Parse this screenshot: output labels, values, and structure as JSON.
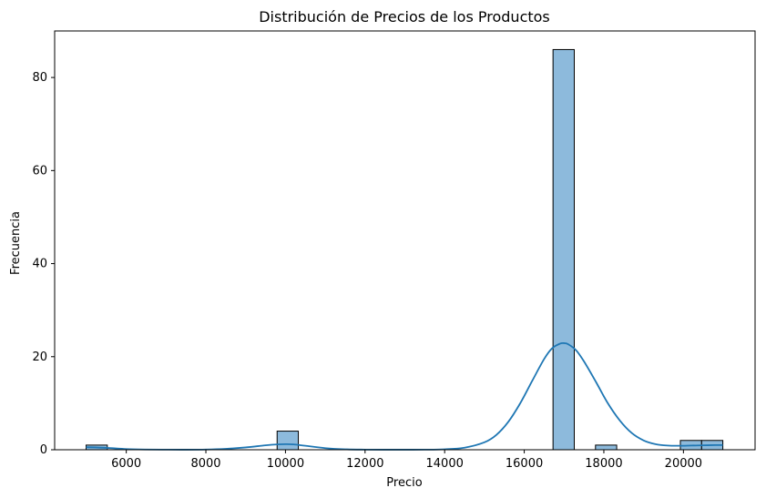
{
  "chart_data": {
    "type": "bar",
    "subtype": "histogram_with_kde",
    "title": "Distribución de Precios de los Productos",
    "xlabel": "Precio",
    "ylabel": "Frecuencia",
    "xlim": [
      4200,
      21800
    ],
    "ylim": [
      0,
      90
    ],
    "xticks": [
      6000,
      8000,
      10000,
      12000,
      14000,
      16000,
      18000,
      20000
    ],
    "yticks": [
      0,
      20,
      40,
      60,
      80
    ],
    "grid": false,
    "bar_color": "#8dbadc",
    "bar_edge_color": "#000000",
    "kde_color": "#1f77b4",
    "bins": [
      {
        "x0": 4990,
        "x1": 5523,
        "count": 1
      },
      {
        "x0": 9790,
        "x1": 10323,
        "count": 4
      },
      {
        "x0": 16723,
        "x1": 17257,
        "count": 86
      },
      {
        "x0": 17790,
        "x1": 18323,
        "count": 1
      },
      {
        "x0": 19923,
        "x1": 20457,
        "count": 2
      },
      {
        "x0": 20457,
        "x1": 20990,
        "count": 2
      }
    ],
    "kde": {
      "x": [
        4990,
        5500,
        6000,
        6500,
        7000,
        7500,
        8000,
        8500,
        9000,
        9500,
        9800,
        10000,
        10200,
        10500,
        11000,
        11500,
        12000,
        12500,
        13000,
        13500,
        14000,
        14500,
        15000,
        15300,
        15600,
        15900,
        16200,
        16500,
        16700,
        16900,
        17000,
        17100,
        17300,
        17500,
        17800,
        18100,
        18400,
        18700,
        19000,
        19300,
        19600,
        19900,
        20200,
        20500,
        20800,
        20990
      ],
      "y": [
        0.55,
        0.4,
        0.15,
        0.05,
        0.02,
        0.01,
        0.05,
        0.2,
        0.5,
        0.95,
        1.15,
        1.2,
        1.15,
        0.85,
        0.35,
        0.1,
        0.03,
        0.01,
        0.01,
        0.02,
        0.1,
        0.45,
        1.6,
        3.2,
        6.0,
        10.0,
        14.8,
        19.5,
        21.8,
        22.8,
        22.9,
        22.7,
        21.4,
        19.0,
        14.6,
        10.0,
        6.3,
        3.6,
        2.0,
        1.2,
        0.9,
        0.85,
        0.9,
        0.95,
        1.0,
        1.0
      ]
    }
  }
}
